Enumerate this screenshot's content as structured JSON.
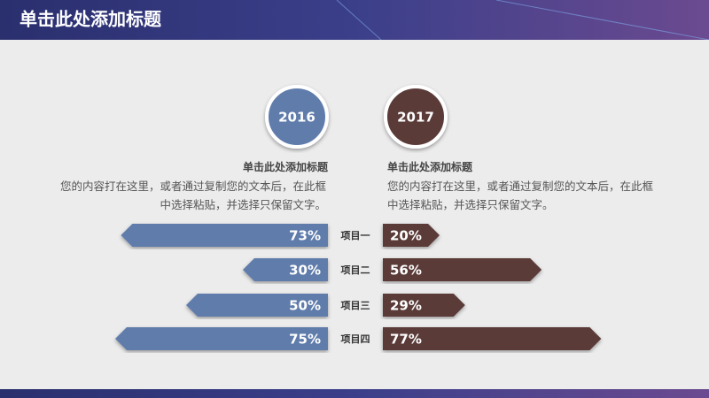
{
  "slide_title": "单击此处添加标题",
  "panels": [
    {
      "heading": "单击此处添加标题",
      "text": "您的内容打在这里，或者通过复制您的文本后，在此框中选择粘贴，并选择只保留文字。"
    },
    {
      "heading": "单击此处添加标题",
      "text": "您的内容打在这里，或者通过复制您的文本后，在此框中选择粘贴，并选择只保留文字。"
    }
  ],
  "chart_data": {
    "type": "butterfly",
    "categories": [
      "项目一",
      "项目二",
      "项目三",
      "项目四"
    ],
    "series": [
      {
        "name": "2016",
        "color": "#5f7bab",
        "values": [
          73,
          30,
          50,
          75
        ],
        "value_labels": [
          "73%",
          "30%",
          "50%",
          "75%"
        ]
      },
      {
        "name": "2017",
        "color": "#5a3b38",
        "values": [
          20,
          56,
          29,
          77
        ],
        "value_labels": [
          "20%",
          "56%",
          "29%",
          "77%"
        ]
      }
    ]
  }
}
